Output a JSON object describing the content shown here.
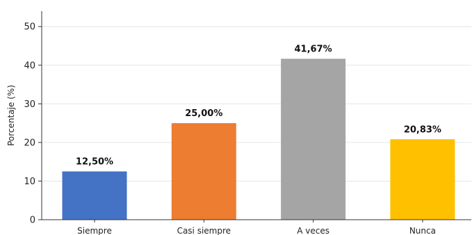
{
  "chart_data": {
    "type": "bar",
    "title": "",
    "xlabel": "",
    "ylabel": "Porcentaje (%)",
    "categories": [
      "Siempre",
      "Casi siempre",
      "A veces",
      "Nunca"
    ],
    "values": [
      12.5,
      25.0,
      41.67,
      20.83
    ],
    "data_labels": [
      "12,50%",
      "25,00%",
      "41,67%",
      "20,83%"
    ],
    "colors": [
      "#4472c4",
      "#ed7d31",
      "#a5a5a5",
      "#ffc000"
    ],
    "ylim": [
      0,
      54
    ],
    "yticks": [
      0,
      10,
      20,
      30,
      40,
      50
    ],
    "grid": true,
    "grid_color": "#e6e6e6"
  }
}
